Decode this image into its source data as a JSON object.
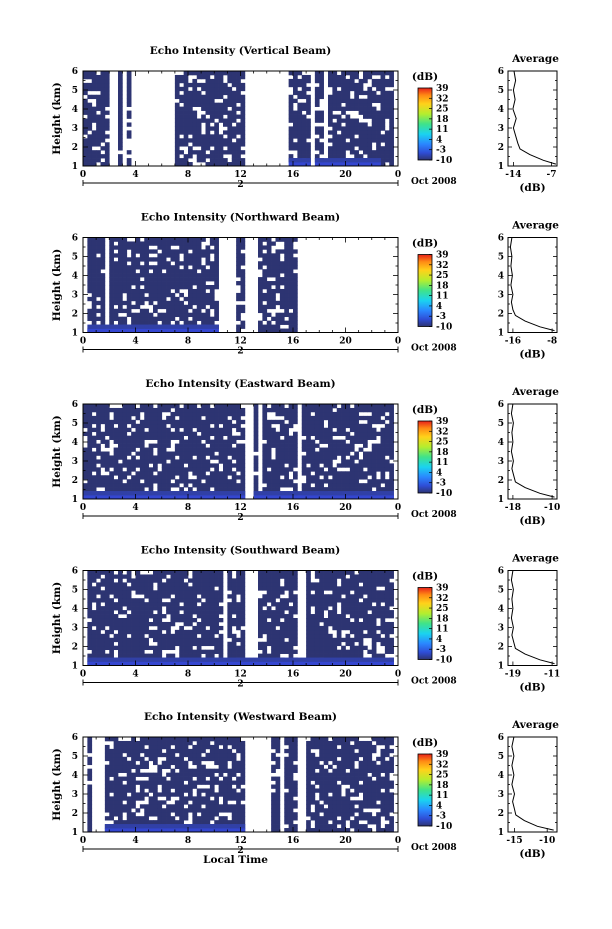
{
  "chart_data": [
    {
      "type": "heatmap",
      "title": "Echo Intensity (Vertical Beam)",
      "ylabel": "Height (km)",
      "xlabel": "",
      "x_ticks": [
        "0",
        "4",
        "8",
        "12",
        "16",
        "20",
        "0"
      ],
      "y_ticks": [
        "1",
        "2",
        "3",
        "4",
        "5",
        "6"
      ],
      "xlim": [
        0,
        24
      ],
      "ylim": [
        1,
        6
      ],
      "date_day": "2",
      "date_label": "Oct 2008",
      "colorbar": {
        "unit": "(dB)",
        "ticks": [
          "39",
          "32",
          "25",
          "18",
          "11",
          "4",
          "-3",
          "-10"
        ],
        "range": [
          -10,
          39
        ]
      },
      "echo_segments": [
        [
          0.1,
          2.0
        ],
        [
          2.6,
          2.9
        ],
        [
          3.3,
          3.6
        ],
        [
          7.0,
          10.6
        ],
        [
          10.8,
          12.4
        ],
        [
          15.8,
          17.4
        ],
        [
          17.6,
          18.4
        ],
        [
          18.6,
          23.8
        ]
      ],
      "low_band_segments": [
        [
          15.8,
          17.4
        ],
        [
          17.6,
          22.5
        ]
      ],
      "average_profile": {
        "title": "Average",
        "xlabel": "(dB)",
        "x_ticks": [
          "-14",
          "-7"
        ],
        "xlim": [
          -15,
          -6
        ],
        "y_ticks": [
          "1",
          "2",
          "3",
          "4",
          "5",
          "6"
        ],
        "height_km": [
          1.1,
          1.3,
          1.6,
          1.9,
          2.2,
          2.6,
          3.0,
          3.5,
          4.0,
          4.5,
          5.0,
          5.5,
          6.0
        ],
        "value_db": [
          -6.2,
          -8.5,
          -11.0,
          -12.8,
          -13.2,
          -13.6,
          -14.0,
          -13.5,
          -14.1,
          -13.7,
          -14.0,
          -13.6,
          -13.9
        ]
      }
    },
    {
      "type": "heatmap",
      "title": "Echo Intensity (Northward Beam)",
      "ylabel": "Height (km)",
      "xlabel": "",
      "x_ticks": [
        "0",
        "4",
        "8",
        "12",
        "16",
        "20",
        "0"
      ],
      "y_ticks": [
        "1",
        "2",
        "3",
        "4",
        "5",
        "6"
      ],
      "xlim": [
        0,
        24
      ],
      "ylim": [
        1,
        6
      ],
      "date_day": "2",
      "date_label": "Oct 2008",
      "colorbar": {
        "unit": "(dB)",
        "ticks": [
          "39",
          "32",
          "25",
          "18",
          "11",
          "4",
          "-3",
          "-10"
        ],
        "range": [
          -10,
          39
        ]
      },
      "echo_segments": [
        [
          0.2,
          1.8
        ],
        [
          2.0,
          10.4
        ],
        [
          11.6,
          12.2
        ],
        [
          13.5,
          15.2
        ],
        [
          15.3,
          16.2
        ]
      ],
      "low_band_segments": [
        [
          0.2,
          10.4
        ]
      ],
      "average_profile": {
        "title": "Average",
        "xlabel": "(dB)",
        "x_ticks": [
          "-16",
          "-8"
        ],
        "xlim": [
          -17,
          -7
        ],
        "y_ticks": [
          "1",
          "2",
          "3",
          "4",
          "5",
          "6"
        ],
        "height_km": [
          1.1,
          1.3,
          1.6,
          1.9,
          2.2,
          2.6,
          3.0,
          3.5,
          4.0,
          4.5,
          5.0,
          5.5,
          6.0
        ],
        "value_db": [
          -7.5,
          -10.5,
          -13.5,
          -15.5,
          -16.0,
          -16.3,
          -16.0,
          -16.4,
          -16.1,
          -16.4,
          -16.2,
          -16.5,
          -16.2
        ]
      }
    },
    {
      "type": "heatmap",
      "title": "Echo Intensity (Eastward Beam)",
      "ylabel": "Height (km)",
      "xlabel": "",
      "x_ticks": [
        "0",
        "4",
        "8",
        "12",
        "16",
        "20",
        "0"
      ],
      "y_ticks": [
        "1",
        "2",
        "3",
        "4",
        "5",
        "6"
      ],
      "xlim": [
        0,
        24
      ],
      "ylim": [
        1,
        6
      ],
      "date_day": "2",
      "date_label": "Oct 2008",
      "colorbar": {
        "unit": "(dB)",
        "ticks": [
          "39",
          "32",
          "25",
          "18",
          "11",
          "4",
          "-3",
          "-10"
        ],
        "range": [
          -10,
          39
        ]
      },
      "echo_segments": [
        [
          0.1,
          10.5
        ],
        [
          10.6,
          12.4
        ],
        [
          13.0,
          13.4
        ],
        [
          13.6,
          16.4
        ],
        [
          16.8,
          23.6
        ]
      ],
      "low_band_segments": [
        [
          0.1,
          12.4
        ],
        [
          13.0,
          23.6
        ]
      ],
      "average_profile": {
        "title": "Average",
        "xlabel": "(dB)",
        "x_ticks": [
          "-18",
          "-10"
        ],
        "xlim": [
          -19,
          -9
        ],
        "y_ticks": [
          "1",
          "2",
          "3",
          "4",
          "5",
          "6"
        ],
        "height_km": [
          1.1,
          1.3,
          1.6,
          1.9,
          2.2,
          2.6,
          3.0,
          3.5,
          4.0,
          4.5,
          5.0,
          5.5,
          6.0
        ],
        "value_db": [
          -9.5,
          -12.5,
          -15.5,
          -17.5,
          -17.8,
          -18.2,
          -17.9,
          -18.3,
          -18.0,
          -18.2,
          -17.9,
          -18.3,
          -18.0
        ]
      }
    },
    {
      "type": "heatmap",
      "title": "Echo Intensity (Southward Beam)",
      "ylabel": "Height (km)",
      "xlabel": "",
      "x_ticks": [
        "0",
        "4",
        "8",
        "12",
        "16",
        "20",
        "0"
      ],
      "y_ticks": [
        "1",
        "2",
        "3",
        "4",
        "5",
        "6"
      ],
      "xlim": [
        0,
        24
      ],
      "ylim": [
        1,
        6
      ],
      "date_day": "2",
      "date_label": "Oct 2008",
      "colorbar": {
        "unit": "(dB)",
        "ticks": [
          "39",
          "32",
          "25",
          "18",
          "11",
          "4",
          "-3",
          "-10"
        ],
        "range": [
          -10,
          39
        ]
      },
      "echo_segments": [
        [
          0.2,
          1.6
        ],
        [
          1.8,
          10.8
        ],
        [
          11.0,
          12.2
        ],
        [
          13.4,
          16.2
        ],
        [
          17.0,
          23.6
        ]
      ],
      "low_band_segments": [
        [
          0.2,
          23.6
        ]
      ],
      "average_profile": {
        "title": "Average",
        "xlabel": "(dB)",
        "x_ticks": [
          "-19",
          "-11"
        ],
        "xlim": [
          -20,
          -10
        ],
        "y_ticks": [
          "1",
          "2",
          "3",
          "4",
          "5",
          "6"
        ],
        "height_km": [
          1.1,
          1.3,
          1.6,
          1.9,
          2.2,
          2.6,
          3.0,
          3.5,
          4.0,
          4.5,
          5.0,
          5.5,
          6.0
        ],
        "value_db": [
          -10.5,
          -13.5,
          -16.5,
          -18.5,
          -18.8,
          -19.2,
          -18.9,
          -19.3,
          -19.0,
          -19.2,
          -18.9,
          -19.3,
          -19.0
        ]
      }
    },
    {
      "type": "heatmap",
      "title": "Echo Intensity (Westward Beam)",
      "ylabel": "Height (km)",
      "xlabel": "Local Time",
      "x_ticks": [
        "0",
        "4",
        "8",
        "12",
        "16",
        "20",
        "0"
      ],
      "y_ticks": [
        "1",
        "2",
        "3",
        "4",
        "5",
        "6"
      ],
      "xlim": [
        0,
        24
      ],
      "ylim": [
        1,
        6
      ],
      "date_day": "2",
      "date_label": "Oct 2008",
      "colorbar": {
        "unit": "(dB)",
        "ticks": [
          "39",
          "32",
          "25",
          "18",
          "11",
          "4",
          "-3",
          "-10"
        ],
        "range": [
          -10,
          39
        ]
      },
      "echo_segments": [
        [
          0.2,
          0.8
        ],
        [
          1.6,
          10.9
        ],
        [
          11.0,
          12.3
        ],
        [
          14.3,
          15.0
        ],
        [
          15.4,
          16.4
        ],
        [
          17.0,
          23.6
        ]
      ],
      "low_band_segments": [
        [
          1.6,
          12.3
        ]
      ],
      "average_profile": {
        "title": "Average",
        "xlabel": "(dB)",
        "x_ticks": [
          "-15",
          "-10"
        ],
        "xlim": [
          -16,
          -8.5
        ],
        "y_ticks": [
          "1",
          "2",
          "3",
          "4",
          "5",
          "6"
        ],
        "height_km": [
          1.1,
          1.3,
          1.6,
          1.9,
          2.2,
          2.6,
          3.0,
          3.5,
          4.0,
          4.5,
          5.0,
          5.5,
          6.0
        ],
        "value_db": [
          -9.0,
          -11.5,
          -13.5,
          -14.8,
          -15.0,
          -15.3,
          -15.0,
          -15.4,
          -15.1,
          -15.4,
          -15.1,
          -15.4,
          -15.1
        ]
      }
    }
  ]
}
